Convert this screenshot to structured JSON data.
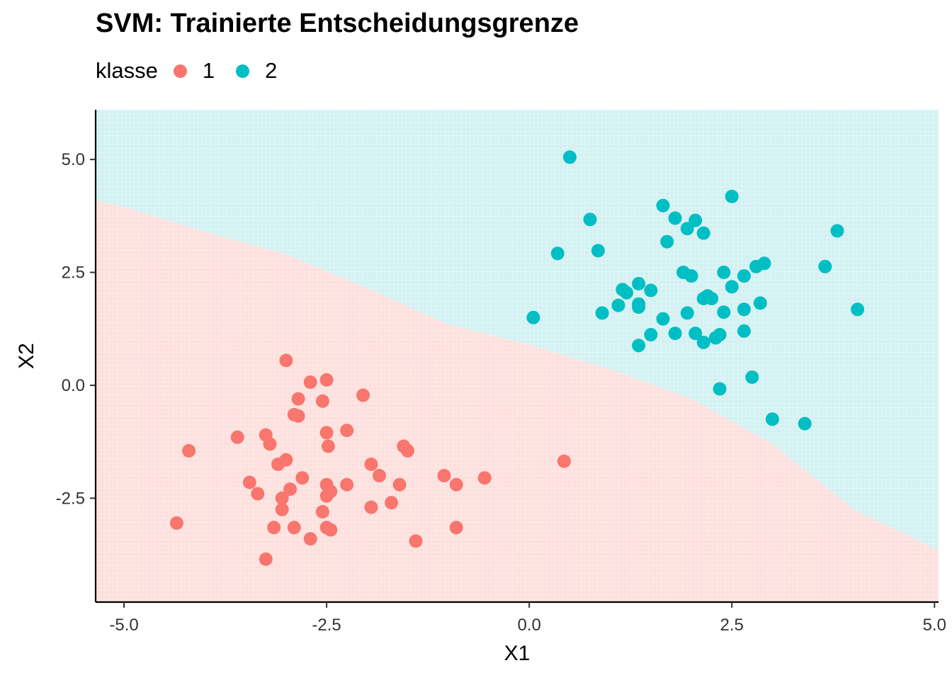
{
  "chart_data": {
    "type": "scatter",
    "title": "SVM: Trainierte Entscheidungsgrenze",
    "xlabel": "X1",
    "ylabel": "X2",
    "xlim": [
      -5.35,
      5.05
    ],
    "ylim": [
      -4.8,
      6.1
    ],
    "xticks": [
      -5.0,
      -2.5,
      0.0,
      2.5,
      5.0
    ],
    "xtick_labels": [
      "-5.0",
      "-2.5",
      "0.0",
      "2.5",
      "5.0"
    ],
    "yticks": [
      -2.5,
      0.0,
      2.5,
      5.0
    ],
    "ytick_labels": [
      "-2.5",
      "0.0",
      "2.5",
      "5.0"
    ],
    "grid": false,
    "legend": {
      "title": "klasse",
      "position": "top-left"
    },
    "decision_boundary": [
      [
        -5.35,
        4.1
      ],
      [
        -5.0,
        3.95
      ],
      [
        -4.0,
        3.4
      ],
      [
        -3.0,
        2.9
      ],
      [
        -2.0,
        2.15
      ],
      [
        -1.0,
        1.35
      ],
      [
        0.0,
        0.9
      ],
      [
        1.0,
        0.35
      ],
      [
        2.0,
        -0.3
      ],
      [
        3.0,
        -1.3
      ],
      [
        4.0,
        -2.75
      ],
      [
        5.05,
        -3.65
      ]
    ],
    "regions": [
      {
        "class": "1",
        "side": "below",
        "color": "#fde0dd"
      },
      {
        "class": "2",
        "side": "above",
        "color": "#d3f1f2"
      }
    ],
    "series": [
      {
        "name": "1",
        "color": "#f8766d",
        "points": [
          [
            -3.0,
            0.55
          ],
          [
            -2.7,
            0.07
          ],
          [
            -2.5,
            0.12
          ],
          [
            -2.85,
            -0.3
          ],
          [
            -2.55,
            -0.35
          ],
          [
            -2.05,
            -0.22
          ],
          [
            -2.9,
            -0.65
          ],
          [
            -2.85,
            -0.68
          ],
          [
            -2.5,
            -1.05
          ],
          [
            -2.25,
            -1.0
          ],
          [
            -3.6,
            -1.15
          ],
          [
            -3.25,
            -1.1
          ],
          [
            -3.2,
            -1.3
          ],
          [
            -4.2,
            -1.45
          ],
          [
            -2.48,
            -1.35
          ],
          [
            -1.55,
            -1.35
          ],
          [
            -1.5,
            -1.45
          ],
          [
            -3.0,
            -1.65
          ],
          [
            -3.1,
            -1.75
          ],
          [
            -1.95,
            -1.75
          ],
          [
            -2.8,
            -2.05
          ],
          [
            -1.85,
            -2.0
          ],
          [
            -1.05,
            -2.0
          ],
          [
            -0.55,
            -2.05
          ],
          [
            -3.45,
            -2.15
          ],
          [
            -2.5,
            -2.2
          ],
          [
            -2.25,
            -2.2
          ],
          [
            -1.6,
            -2.2
          ],
          [
            -0.9,
            -2.2
          ],
          [
            -2.95,
            -2.3
          ],
          [
            -3.35,
            -2.4
          ],
          [
            -2.45,
            -2.35
          ],
          [
            -2.5,
            -2.45
          ],
          [
            -3.05,
            -2.5
          ],
          [
            -1.7,
            -2.6
          ],
          [
            -1.95,
            -2.7
          ],
          [
            -3.05,
            -2.75
          ],
          [
            -2.55,
            -2.8
          ],
          [
            -4.35,
            -3.05
          ],
          [
            -3.15,
            -3.15
          ],
          [
            -2.9,
            -3.15
          ],
          [
            -2.5,
            -3.15
          ],
          [
            -2.45,
            -3.2
          ],
          [
            -0.9,
            -3.15
          ],
          [
            -2.7,
            -3.4
          ],
          [
            -1.4,
            -3.45
          ],
          [
            -3.25,
            -3.85
          ],
          [
            0.43,
            -1.68
          ]
        ]
      },
      {
        "name": "2",
        "color": "#00bfc4",
        "points": [
          [
            0.5,
            5.05
          ],
          [
            2.5,
            4.18
          ],
          [
            1.65,
            3.98
          ],
          [
            0.75,
            3.67
          ],
          [
            1.8,
            3.7
          ],
          [
            2.05,
            3.65
          ],
          [
            1.95,
            3.47
          ],
          [
            2.15,
            3.37
          ],
          [
            3.8,
            3.42
          ],
          [
            1.7,
            3.18
          ],
          [
            0.35,
            2.92
          ],
          [
            0.85,
            2.98
          ],
          [
            2.9,
            2.7
          ],
          [
            2.8,
            2.63
          ],
          [
            3.65,
            2.63
          ],
          [
            1.9,
            2.5
          ],
          [
            2.4,
            2.5
          ],
          [
            2.0,
            2.42
          ],
          [
            2.65,
            2.42
          ],
          [
            1.35,
            2.25
          ],
          [
            2.5,
            2.18
          ],
          [
            1.15,
            2.12
          ],
          [
            1.5,
            2.1
          ],
          [
            1.2,
            2.05
          ],
          [
            2.2,
            1.98
          ],
          [
            2.15,
            1.92
          ],
          [
            2.25,
            1.92
          ],
          [
            1.1,
            1.77
          ],
          [
            1.35,
            1.8
          ],
          [
            1.35,
            1.73
          ],
          [
            2.85,
            1.82
          ],
          [
            2.65,
            1.68
          ],
          [
            4.05,
            1.68
          ],
          [
            0.9,
            1.6
          ],
          [
            1.95,
            1.6
          ],
          [
            2.4,
            1.62
          ],
          [
            0.05,
            1.5
          ],
          [
            1.65,
            1.47
          ],
          [
            2.65,
            1.2
          ],
          [
            1.5,
            1.12
          ],
          [
            1.8,
            1.15
          ],
          [
            2.05,
            1.15
          ],
          [
            2.35,
            1.12
          ],
          [
            2.3,
            1.05
          ],
          [
            2.15,
            0.95
          ],
          [
            1.35,
            0.88
          ],
          [
            2.75,
            0.18
          ],
          [
            2.35,
            -0.08
          ],
          [
            3.0,
            -0.75
          ],
          [
            3.4,
            -0.85
          ]
        ]
      }
    ]
  }
}
